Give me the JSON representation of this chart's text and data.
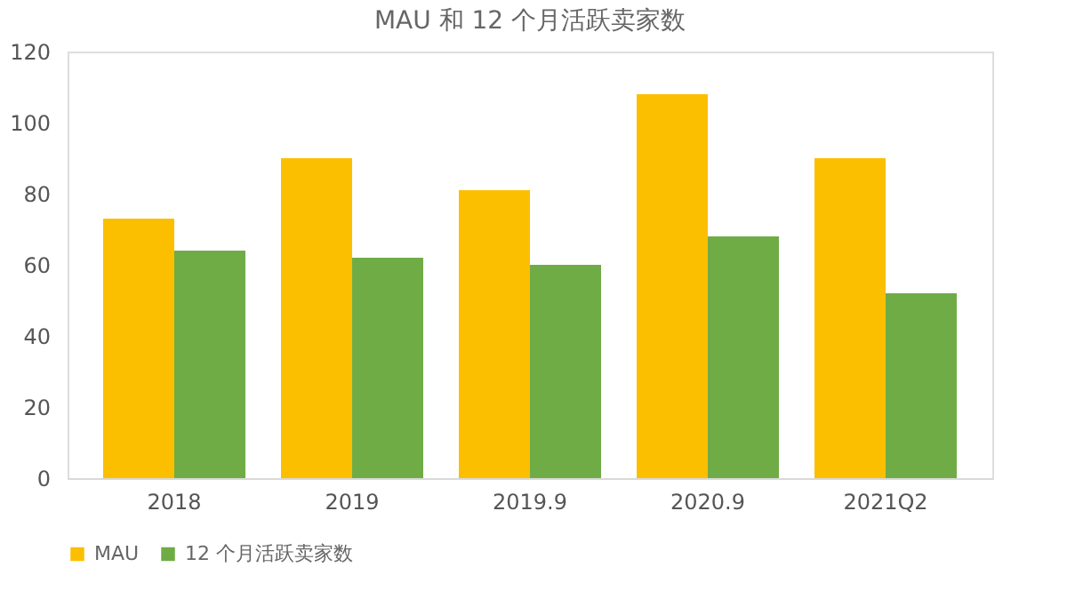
{
  "chart_data": {
    "type": "bar",
    "title": "MAU 和 12 个月活跃卖家数",
    "categories": [
      "2018",
      "2019",
      "2019.9",
      "2020.9",
      "2021Q2"
    ],
    "series": [
      {
        "name": "MAU",
        "color": "#fbbf00",
        "values": [
          73,
          90,
          81,
          108,
          90
        ]
      },
      {
        "name": "12 个月活跃卖家数",
        "color": "#6fac46",
        "values": [
          64,
          62,
          60,
          68,
          52
        ]
      }
    ],
    "ylim": [
      0,
      120
    ],
    "yticks": [
      0,
      20,
      40,
      60,
      80,
      100,
      120
    ],
    "grid": false,
    "legend": "bottom"
  }
}
